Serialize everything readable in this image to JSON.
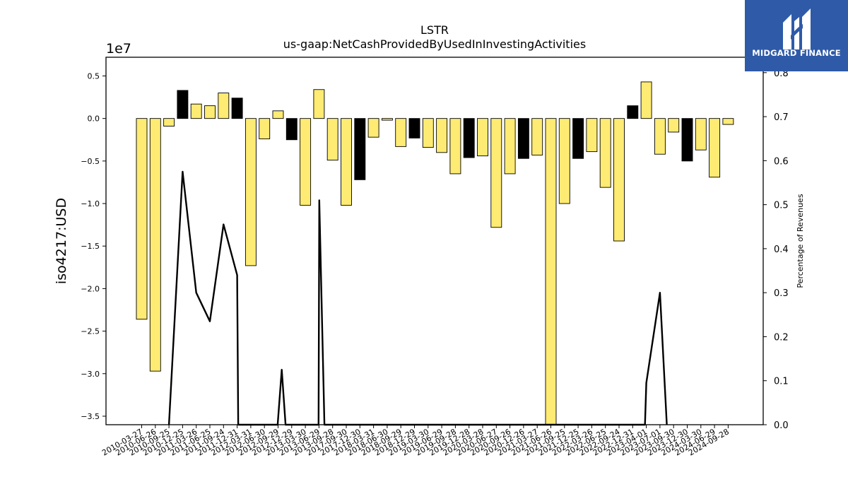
{
  "chart_data": {
    "type": "bar",
    "title": "LSTR",
    "subtitle": "us-gaap:NetCashProvidedByUsedInInvestingActivities",
    "ylabel": "iso4217:USD",
    "y_offset_label": "1e7",
    "y2label": "Percentage of Revenues",
    "ylim": [
      -3.6,
      0.72
    ],
    "y2lim": [
      0.0,
      0.835
    ],
    "yticks": [
      "0.5",
      "0.0",
      "−0.5",
      "−1.0",
      "−1.5",
      "−2.0",
      "−2.5",
      "−3.0",
      "−3.5"
    ],
    "y2ticks": [
      "0.0",
      "0.1",
      "0.2",
      "0.3",
      "0.4",
      "0.5",
      "0.6",
      "0.7",
      "0.8"
    ],
    "categories": [
      "2010-03-27",
      "2010-06-26",
      "2010-09-25",
      "2010-12-25",
      "2011-03-26",
      "2011-06-25",
      "2011-09-24",
      "2011-12-31",
      "2012-03-31",
      "2012-06-30",
      "2012-09-29",
      "2012-12-29",
      "2013-03-30",
      "2013-06-29",
      "2013-09-28",
      "2017-09-30",
      "2017-12-30",
      "2018-03-31",
      "2018-06-30",
      "2018-09-29",
      "2018-12-29",
      "2019-03-30",
      "2019-06-29",
      "2019-09-28",
      "2019-12-28",
      "2020-03-28",
      "2020-06-27",
      "2020-09-26",
      "2020-12-26",
      "2021-03-27",
      "2021-06-26",
      "2021-09-25",
      "2021-12-25",
      "2022-03-26",
      "2022-06-25",
      "2022-09-24",
      "2022-12-31",
      "2023-04-01",
      "2023-07-01",
      "2023-09-30",
      "2023-12-30",
      "2024-03-30",
      "2024-06-29",
      "2024-09-28"
    ],
    "series": [
      {
        "values": [
          -2.36,
          -2.97,
          -0.09,
          0.33,
          0.17,
          0.15,
          0.3,
          0.24,
          -1.73,
          -0.24,
          0.09,
          -0.25,
          -1.02,
          0.34,
          -0.49,
          -1.02,
          -0.72,
          -0.22,
          -0.02,
          -0.33,
          -0.23,
          -0.34,
          -0.4,
          -0.65,
          -0.46,
          -0.44,
          -1.28,
          -0.65,
          -0.47,
          -0.43,
          -3.6,
          -1.0,
          -0.47,
          -0.39,
          -0.81,
          -1.44,
          0.15,
          0.43,
          -0.42,
          -0.16,
          -0.5,
          -0.37,
          -0.69,
          -0.07
        ],
        "colors": [
          "#fdeb73",
          "#fdeb73",
          "#fdeb73",
          "#000000",
          "#fdeb73",
          "#fdeb73",
          "#fdeb73",
          "#000000",
          "#fdeb73",
          "#fdeb73",
          "#fdeb73",
          "#000000",
          "#fdeb73",
          "#fdeb73",
          "#fdeb73",
          "#fdeb73",
          "#000000",
          "#fdeb73",
          "#fdeb73",
          "#fdeb73",
          "#000000",
          "#fdeb73",
          "#fdeb73",
          "#fdeb73",
          "#000000",
          "#fdeb73",
          "#fdeb73",
          "#fdeb73",
          "#000000",
          "#fdeb73",
          "#fdeb73",
          "#fdeb73",
          "#000000",
          "#fdeb73",
          "#fdeb73",
          "#fdeb73",
          "#000000",
          "#fdeb73",
          "#fdeb73",
          "#fdeb73",
          "#000000",
          "#fdeb73",
          "#fdeb73",
          "#fdeb73"
        ]
      },
      {
        "axis": "secondary",
        "type": "line",
        "color": "#000000",
        "points": [
          [
            2,
            0.0
          ],
          [
            3,
            0.575
          ],
          [
            4,
            0.3
          ],
          [
            5,
            0.235
          ],
          [
            6,
            0.455
          ],
          [
            7,
            0.34
          ],
          [
            7.08,
            0.0
          ],
          [
            9.97,
            0.0
          ],
          [
            10.27,
            0.125
          ],
          [
            10.55,
            0.0
          ],
          [
            12.97,
            0.0
          ],
          [
            13.02,
            0.51
          ],
          [
            13.4,
            0.0
          ],
          [
            36.9,
            0.0
          ],
          [
            37,
            0.095
          ],
          [
            38,
            0.3
          ],
          [
            38.5,
            0.0
          ]
        ]
      }
    ],
    "grid": false,
    "legend": "none",
    "bar_edge_color": "#000000",
    "bar_default_color": "#fdeb73",
    "bar_highlight_color": "#000000"
  },
  "logo": {
    "text": "MIDGARD FINANCE",
    "background": "#2f5aa8",
    "icon": "midgard-logo-icon"
  }
}
